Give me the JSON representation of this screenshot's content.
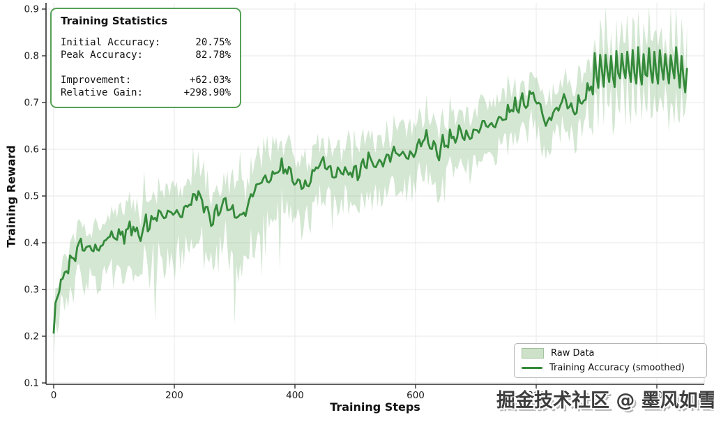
{
  "watermark": {
    "text": "掘金技术社区 @ 墨风如雪"
  },
  "stats_box": {
    "title": "Training Statistics",
    "rows": [
      {
        "label": "Initial Accuracy:",
        "value": "20.75%"
      },
      {
        "label": "Peak Accuracy:",
        "value": "82.78%"
      },
      {
        "label": "Improvement:",
        "value": "+62.03%"
      },
      {
        "label": "Relative Gain:",
        "value": "+298.90%"
      }
    ]
  },
  "legend": {
    "position": "lower right",
    "items": [
      {
        "label": "Raw Data",
        "swatch": "patch",
        "color": "#cde1c9",
        "border": "#a3c29e"
      },
      {
        "label": "Training Accuracy (smoothed)",
        "swatch": "line",
        "color": "#348a3a"
      }
    ]
  },
  "colors": {
    "line": "#348a3a",
    "band": "#79b477",
    "band_opacity": 0.32,
    "grid": "#ececec",
    "spine": "#2f2f2f",
    "right_spine": "#dcdcdc",
    "stats_border": "#56a156",
    "text": "#111111",
    "watermark": "#3d3d3d"
  },
  "chart_data": {
    "type": "line",
    "title": "",
    "xlabel": "Training Steps",
    "ylabel": "Training Reward",
    "xlim": [
      -15,
      1090
    ],
    "ylim": [
      0.097,
      0.915
    ],
    "grid": true,
    "legend_position": "lower right",
    "xticks": [
      0,
      200,
      400,
      600,
      800,
      1000
    ],
    "xtick_labels": [
      "0",
      "200",
      "400",
      "600",
      "800",
      "1000"
    ],
    "yticks": [
      0.1,
      0.2,
      0.3,
      0.4,
      0.5,
      0.6,
      0.7,
      0.8,
      0.9
    ],
    "ytick_labels": [
      "0.1",
      "0.2",
      "0.3",
      "0.4",
      "0.5",
      "0.6",
      "0.7",
      "0.8",
      "0.9"
    ],
    "x_range": [
      0,
      1050
    ],
    "stats": {
      "initial_accuracy_pct": 20.75,
      "peak_accuracy_pct": 82.78,
      "improvement_pct": 62.03,
      "relative_gain_pct": 298.9
    },
    "series": [
      {
        "name": "Training Accuracy (smoothed)",
        "role": "smoothed_line",
        "color": "#348a3a",
        "keypoints": [
          [
            0,
            0.2075
          ],
          [
            4,
            0.27
          ],
          [
            8,
            0.3
          ],
          [
            14,
            0.33
          ],
          [
            22,
            0.355
          ],
          [
            32,
            0.375
          ],
          [
            45,
            0.385
          ],
          [
            60,
            0.39
          ],
          [
            75,
            0.395
          ],
          [
            90,
            0.405
          ],
          [
            105,
            0.415
          ],
          [
            118,
            0.425
          ],
          [
            130,
            0.43
          ],
          [
            142,
            0.405
          ],
          [
            152,
            0.445
          ],
          [
            162,
            0.455
          ],
          [
            172,
            0.465
          ],
          [
            182,
            0.445
          ],
          [
            192,
            0.455
          ],
          [
            205,
            0.465
          ],
          [
            218,
            0.475
          ],
          [
            232,
            0.49
          ],
          [
            242,
            0.5
          ],
          [
            252,
            0.475
          ],
          [
            262,
            0.455
          ],
          [
            272,
            0.465
          ],
          [
            282,
            0.48
          ],
          [
            295,
            0.47
          ],
          [
            308,
            0.455
          ],
          [
            318,
            0.47
          ],
          [
            330,
            0.5
          ],
          [
            342,
            0.525
          ],
          [
            355,
            0.54
          ],
          [
            370,
            0.545
          ],
          [
            385,
            0.55
          ],
          [
            398,
            0.545
          ],
          [
            410,
            0.535
          ],
          [
            422,
            0.52
          ],
          [
            434,
            0.55
          ],
          [
            446,
            0.58
          ],
          [
            455,
            0.565
          ],
          [
            466,
            0.545
          ],
          [
            478,
            0.54
          ],
          [
            490,
            0.55
          ],
          [
            505,
            0.56
          ],
          [
            520,
            0.57
          ],
          [
            535,
            0.572
          ],
          [
            550,
            0.582
          ],
          [
            565,
            0.59
          ],
          [
            578,
            0.578
          ],
          [
            592,
            0.595
          ],
          [
            605,
            0.61
          ],
          [
            615,
            0.628
          ],
          [
            625,
            0.612
          ],
          [
            638,
            0.6
          ],
          [
            650,
            0.615
          ],
          [
            662,
            0.622
          ],
          [
            675,
            0.628
          ],
          [
            688,
            0.63
          ],
          [
            700,
            0.642
          ],
          [
            712,
            0.648
          ],
          [
            725,
            0.655
          ],
          [
            738,
            0.662
          ],
          [
            752,
            0.672
          ],
          [
            765,
            0.688
          ],
          [
            778,
            0.698
          ],
          [
            790,
            0.718
          ],
          [
            800,
            0.708
          ],
          [
            812,
            0.662
          ],
          [
            818,
            0.642
          ],
          [
            826,
            0.678
          ],
          [
            836,
            0.698
          ],
          [
            846,
            0.708
          ],
          [
            855,
            0.698
          ],
          [
            862,
            0.678
          ],
          [
            870,
            0.698
          ],
          [
            880,
            0.712
          ],
          [
            890,
            0.745
          ],
          [
            900,
            0.765
          ],
          [
            930,
            0.77
          ],
          [
            960,
            0.772
          ],
          [
            990,
            0.775
          ],
          [
            1020,
            0.772
          ],
          [
            1040,
            0.768
          ],
          [
            1050,
            0.74
          ]
        ]
      },
      {
        "name": "Raw Data",
        "role": "band",
        "color": "#79b477",
        "opacity": 0.32,
        "lower_halfwidth_keypoints": [
          [
            0,
            0.07
          ],
          [
            10,
            0.08
          ],
          [
            30,
            0.09
          ],
          [
            80,
            0.11
          ],
          [
            150,
            0.12
          ],
          [
            250,
            0.12
          ],
          [
            320,
            0.135
          ],
          [
            400,
            0.11
          ],
          [
            500,
            0.1
          ],
          [
            600,
            0.095
          ],
          [
            700,
            0.09
          ],
          [
            800,
            0.075
          ],
          [
            880,
            0.08
          ],
          [
            950,
            0.095
          ],
          [
            1050,
            0.1
          ]
        ],
        "upper_halfwidth_keypoints": [
          [
            0,
            0.03
          ],
          [
            30,
            0.05
          ],
          [
            80,
            0.06
          ],
          [
            150,
            0.07
          ],
          [
            250,
            0.08
          ],
          [
            320,
            0.08
          ],
          [
            400,
            0.07
          ],
          [
            500,
            0.065
          ],
          [
            600,
            0.07
          ],
          [
            700,
            0.07
          ],
          [
            800,
            0.055
          ],
          [
            880,
            0.07
          ],
          [
            950,
            0.085
          ],
          [
            1050,
            0.09
          ]
        ]
      }
    ],
    "render": {
      "seed": 42,
      "sample_step": 3,
      "line_wiggle_amp": 0.013,
      "end_oscillation": {
        "start": 893,
        "amplitude": 0.05,
        "period": 9
      }
    }
  }
}
